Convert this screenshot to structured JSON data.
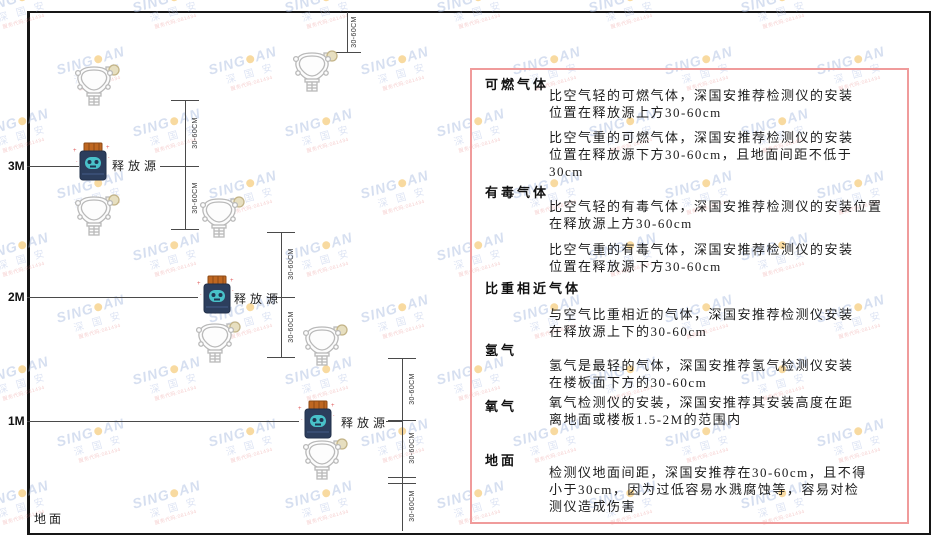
{
  "watermark": {
    "brand_a": "SING",
    "brand_b": "AN",
    "cn": "深 国 安",
    "code": "服务代码:081434"
  },
  "diagram": {
    "heights": [
      {
        "label": "3M"
      },
      {
        "label": "2M"
      },
      {
        "label": "1M"
      }
    ],
    "ground_label": "地面",
    "release_label": "释放源",
    "dim_label": "30-60CM"
  },
  "panel": {
    "border_color": "#f09b9b",
    "sections": [
      {
        "heading": "可燃气体",
        "paras": [
          "比空气轻的可燃气体，深国安推荐检测仪的安装\n位置在释放源上方30-60cm",
          "比空气重的可燃气体，深国安推荐检测仪的安装\n位置在释放源下方30-60cm，且地面间距不低于\n30cm"
        ]
      },
      {
        "heading": "有毒气体",
        "paras": [
          "比空气轻的有毒气体，深国安推荐检测仪的安装位置\n在释放源上方30-60cm",
          "比空气重的有毒气体，深国安推荐检测仪的安装\n位置在释放源下方30-60cm"
        ]
      },
      {
        "heading": "比重相近气体",
        "paras": [
          "与空气比重相近的气体，深国安推荐检测仪安装\n在释放源上下的30-60cm"
        ]
      },
      {
        "heading": "氢气",
        "paras": [
          "氢气是最轻的气体，深国安推荐氢气检测仪安装\n在楼板面下方的30-60cm"
        ]
      },
      {
        "heading": "氧气",
        "paras": [
          "氧气检测仪的安装，深国安推荐其安装高度在距\n离地面或楼板1.5-2M的范围内"
        ]
      },
      {
        "heading": "地面",
        "paras": [
          "检测仪地面间距，深国安推荐在30-60cm，且不得\n小于30cm，因为过低容易水溅腐蚀等，容易对检\n测仪造成伤害"
        ]
      }
    ]
  }
}
